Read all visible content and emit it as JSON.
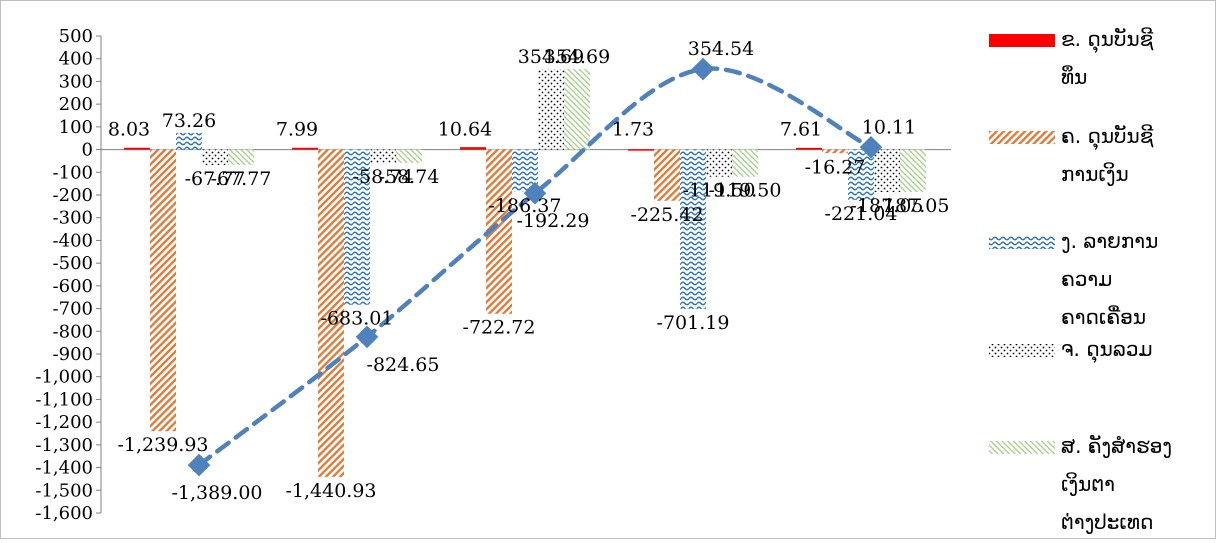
{
  "chart_data": {
    "type": "bar",
    "title": "",
    "xlabel": "",
    "ylabel": "",
    "ylim": [
      -1600,
      500
    ],
    "ytick_step": 100,
    "ytick_labels": [
      "500",
      "400",
      "300",
      "200",
      "100",
      "0",
      "-100",
      "-200",
      "-300",
      "-400",
      "-500",
      "-600",
      "-700",
      "-800",
      "-900",
      "-1,000",
      "-1,100",
      "-1,200",
      "-1,300",
      "-1,400",
      "-1,500",
      "-1,600"
    ],
    "grid": false,
    "legend_position": "right",
    "categories": [
      "",
      "",
      "",
      "",
      ""
    ],
    "series": [
      {
        "name": "ຂ. ດຸນບັນຊີທຶນ",
        "legend_lines": [
          "ຂ. ດຸນບັນຊີ",
          "ທຶນ"
        ],
        "color": "#ff0000",
        "pattern": "solid",
        "values": [
          8.03,
          7.99,
          10.64,
          1.73,
          7.61
        ],
        "labels": [
          "8.03",
          "7.99",
          "10.64",
          "1.73",
          "7.61"
        ]
      },
      {
        "name": "ຄ. ດຸນບັນຊີການເງິນ",
        "legend_lines": [
          "ຄ. ດຸນບັນຊີ",
          "ການເງິນ"
        ],
        "color": "#e07b39",
        "pattern": "diag",
        "values": [
          -1239.93,
          -1440.93,
          -722.72,
          -225.42,
          -16.27
        ],
        "labels": [
          "-1,239.93",
          "-1,440.93",
          "-722.72",
          "-225.42",
          "-16.27"
        ]
      },
      {
        "name": "ງ. ລາຍການຄວາມຄາດເຄື່ອນ",
        "legend_lines": [
          "ງ. ລາຍການ",
          "ຄວາມ",
          "ຄາດເຄື່ອນ"
        ],
        "color": "#2e75b6",
        "pattern": "wave",
        "values": [
          73.26,
          -683.01,
          -186.37,
          -701.19,
          -221.04
        ],
        "labels": [
          "73.26",
          "-683.01",
          "-186.37",
          "-701.19",
          "-221.04"
        ]
      },
      {
        "name": "ຈ. ດຸນລວມ",
        "legend_lines": [
          "ຈ. ດຸນລວມ"
        ],
        "color": "#000000",
        "pattern": "dots",
        "values": [
          -67.77,
          -58.74,
          354.69,
          -119.5,
          -187.05
        ],
        "labels": [
          "-67.77",
          "-58.74",
          "354.69",
          "-119.50",
          "-187.05"
        ]
      },
      {
        "name": "ສ. ຄັງສຳຮອງເງິນຕາຕ່າງປະເທດ",
        "legend_lines": [
          "ສ. ຄັງສຳຮອງ",
          "ເງິນຕາ",
          "ຕ່າງປະເທດ"
        ],
        "color": "#a9d18e",
        "pattern": "diag-light",
        "values": [
          -67.77,
          -58.74,
          354.69,
          -119.5,
          -187.05
        ],
        "labels": [
          "-67.77",
          "-58.74",
          "354.69",
          "-119.50",
          "-187.05"
        ]
      }
    ],
    "line_series": {
      "name": "",
      "color": "#4f81bd",
      "style": "dashed",
      "marker": "diamond",
      "values": [
        -1389.0,
        -824.65,
        -192.29,
        354.54,
        10.11
      ],
      "labels": [
        "-1,389.00",
        "-824.65",
        "-192.29",
        "354.54",
        "10.11"
      ]
    }
  }
}
